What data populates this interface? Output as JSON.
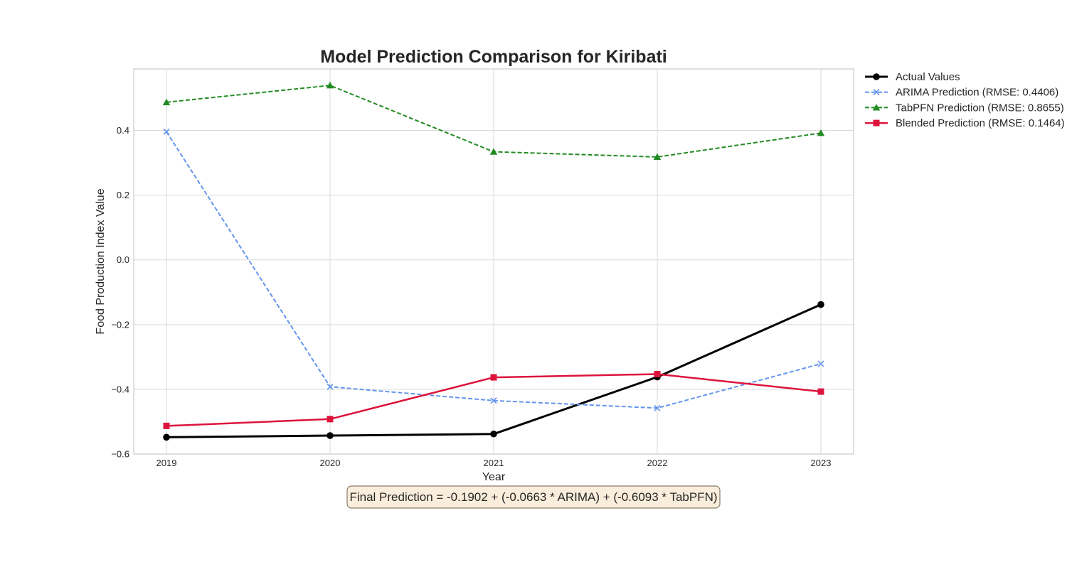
{
  "chart_data": {
    "type": "line",
    "title": "Model Prediction Comparison for Kiribati",
    "xlabel": "Year",
    "ylabel": "Food Production Index Value",
    "x": [
      2019,
      2020,
      2021,
      2022,
      2023
    ],
    "x_tick_labels": [
      "2019",
      "2020",
      "2021",
      "2022",
      "2023"
    ],
    "xlim": [
      2018.8,
      2023.2
    ],
    "ylim": [
      -0.6,
      0.59
    ],
    "y_ticks": [
      -0.6,
      -0.4,
      -0.2,
      0.0,
      0.2,
      0.4
    ],
    "y_tick_labels": [
      "−0.6",
      "−0.4",
      "−0.2",
      "0.0",
      "0.2",
      "0.4"
    ],
    "grid": true,
    "legend_position": "outside-right-top",
    "series": [
      {
        "key": "actual",
        "name": "Actual Values",
        "values": [
          -0.548,
          -0.543,
          -0.538,
          -0.362,
          -0.138
        ],
        "color": "#000000",
        "dashed": false,
        "marker": "circle",
        "width": 3
      },
      {
        "key": "arima",
        "name": "ARIMA Prediction (RMSE: 0.4406)",
        "values": [
          0.396,
          -0.392,
          -0.435,
          -0.458,
          -0.321
        ],
        "color": "#6495ED",
        "dashed": true,
        "marker": "x",
        "width": 2
      },
      {
        "key": "tabpfn",
        "name": "TabPFN Prediction (RMSE: 0.8655)",
        "values": [
          0.487,
          0.539,
          0.334,
          0.318,
          0.392
        ],
        "color": "#228B22",
        "dashed": true,
        "marker": "triangle",
        "width": 2
      },
      {
        "key": "blended",
        "name": "Blended Prediction (RMSE: 0.1464)",
        "values": [
          -0.513,
          -0.492,
          -0.363,
          -0.353,
          -0.407
        ],
        "color": "#DC143C",
        "dashed": false,
        "marker": "square",
        "width": 2.5
      }
    ],
    "annotation": "Final Prediction = -0.1902 + (-0.0663 * ARIMA) + (-0.6093 * TabPFN)"
  }
}
